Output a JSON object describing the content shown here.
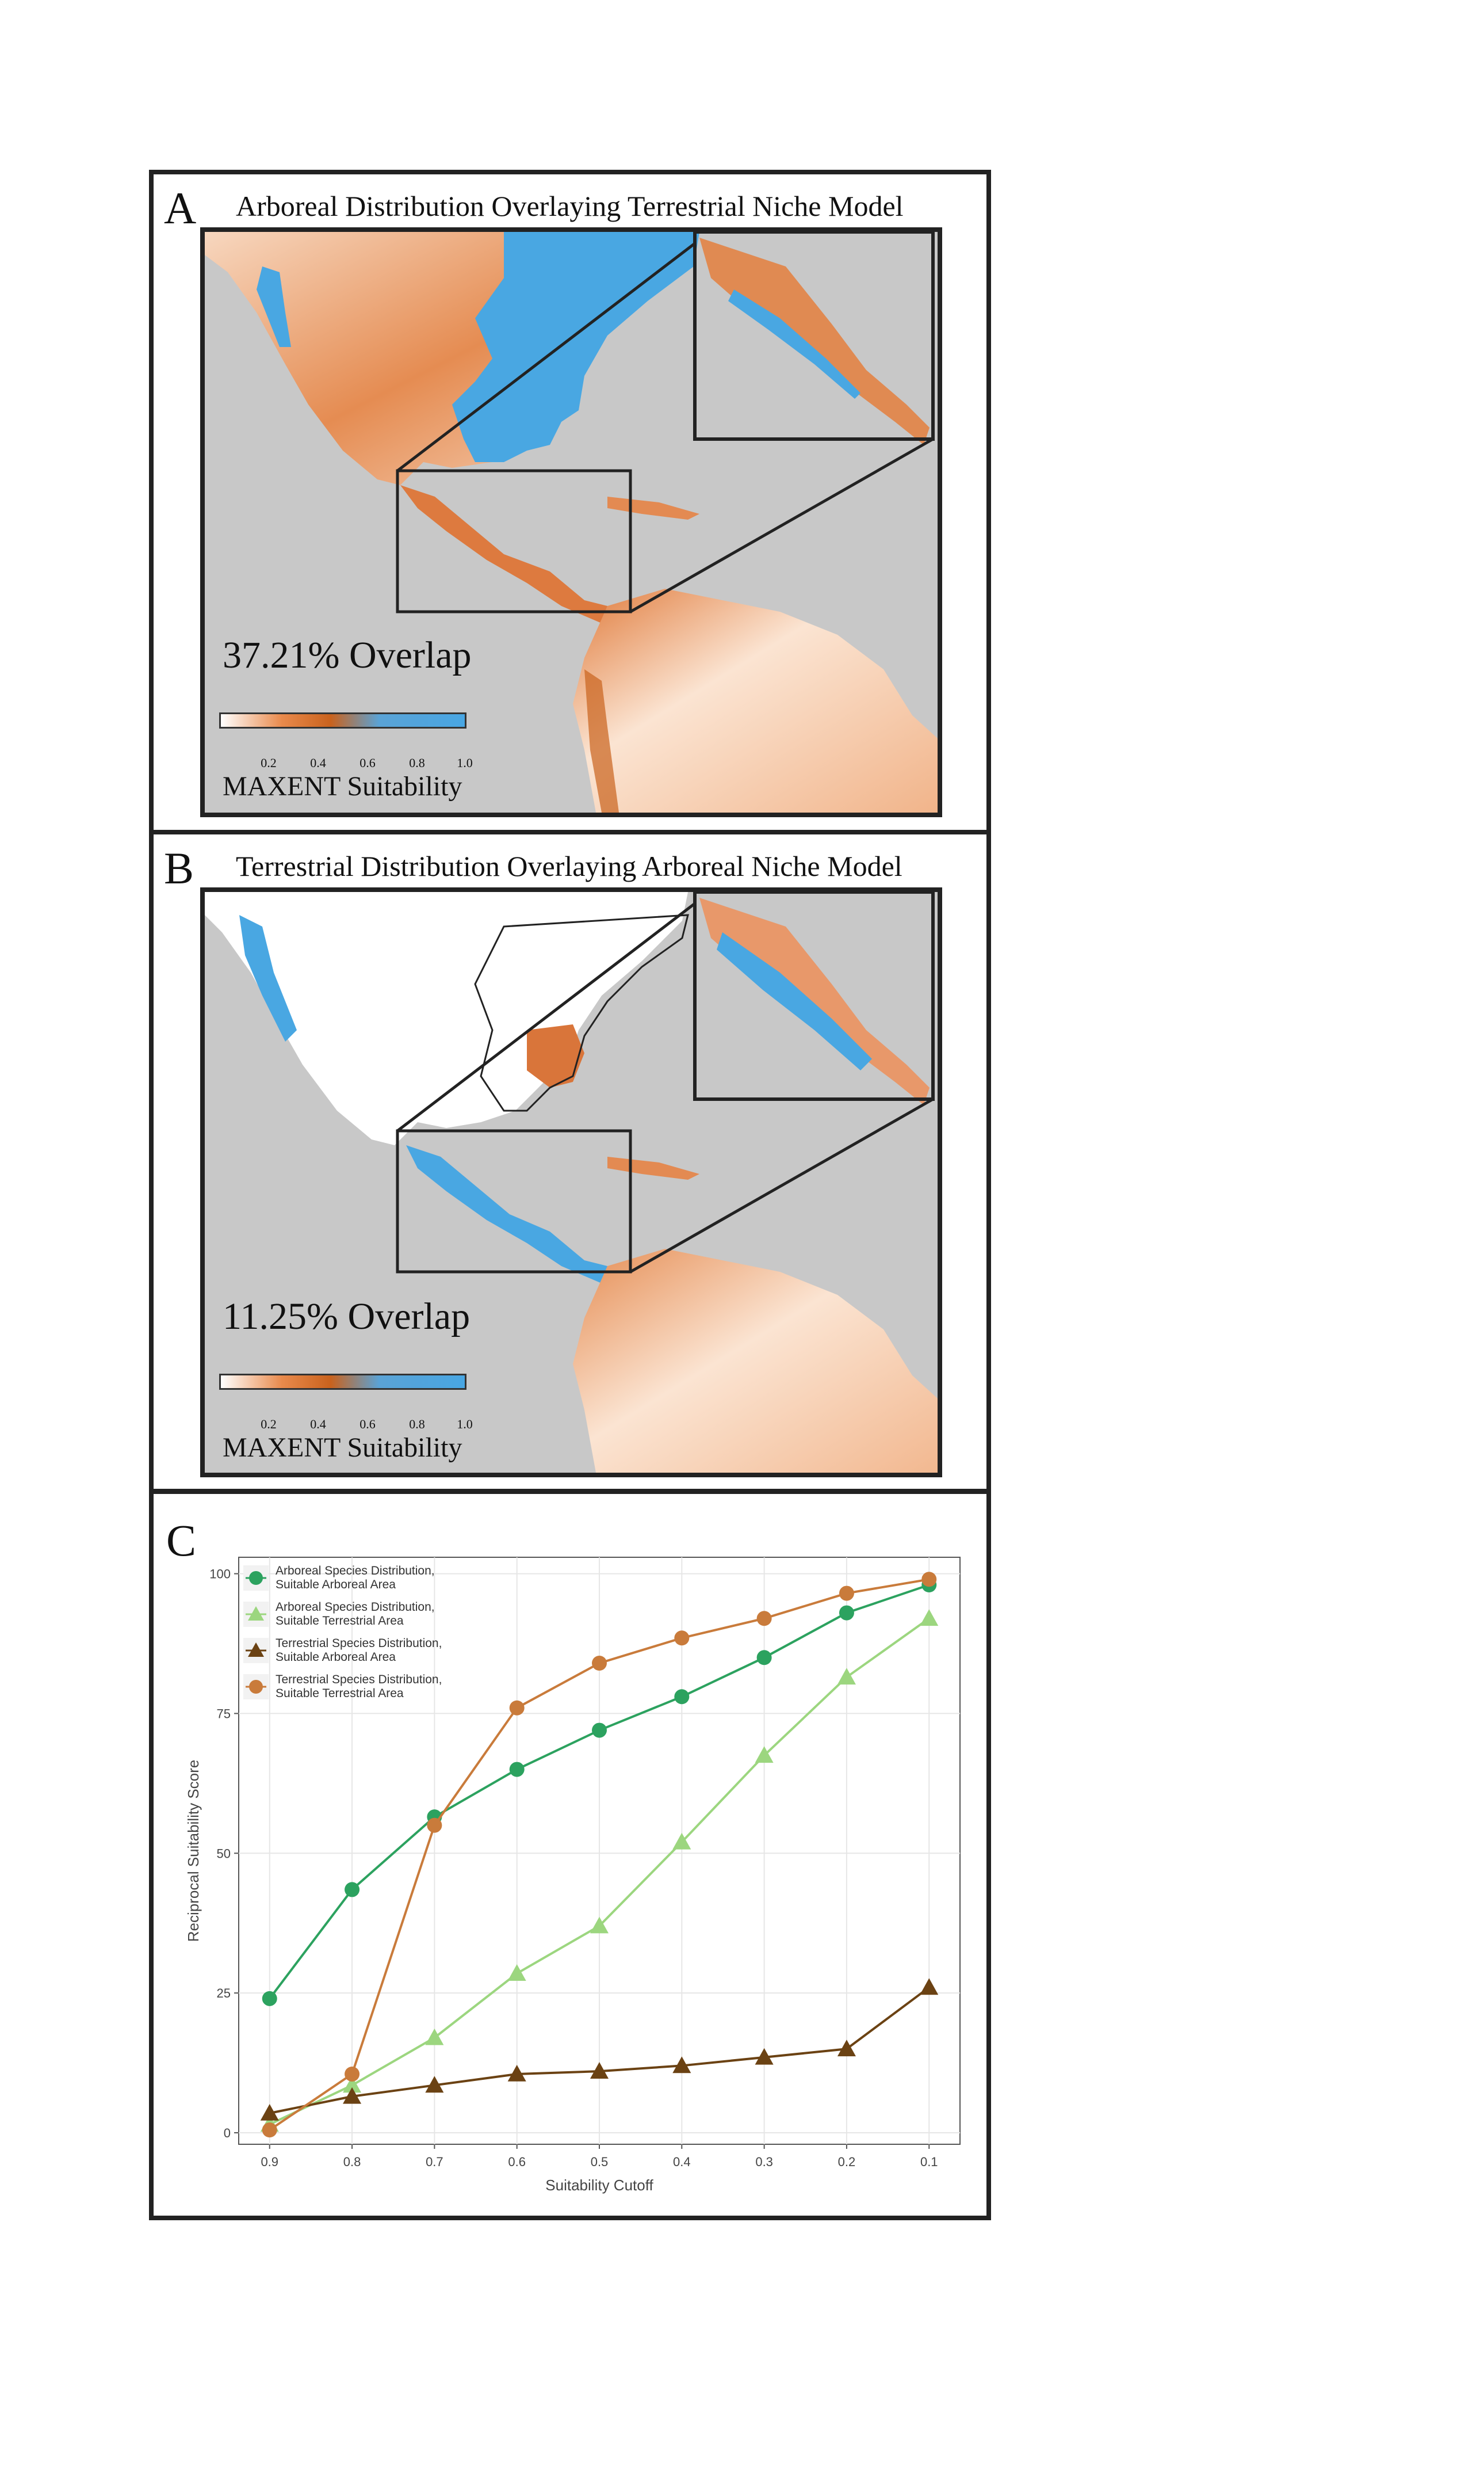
{
  "panels": {
    "A": {
      "letter": "A",
      "title": "Arboreal Distribution Overlaying Terrestrial Niche Model",
      "overlap": "37.21% Overlap"
    },
    "B": {
      "letter": "B",
      "title": "Terrestrial Distribution Overlaying Arboreal Niche Model",
      "overlap": "11.25% Overlap"
    },
    "C": {
      "letter": "C"
    }
  },
  "colorbar": {
    "ticks": [
      "0.2",
      "0.4",
      "0.6",
      "0.8",
      "1.0"
    ],
    "title": "MAXENT Suitability",
    "colors": [
      "#ffffff",
      "#e98a4c",
      "#c9621d",
      "#5aa3d6",
      "#48a6e3"
    ]
  },
  "map_colors": {
    "ocean": "#c8c8c8",
    "low": "#fbe6d6",
    "mid": "#e07a3a",
    "high": "#b9561a",
    "distribution": "#49a7e2"
  },
  "chart_data": {
    "type": "line",
    "xlabel": "Suitability Cutoff",
    "ylabel": "Reciprocal Suitability Score",
    "x": [
      0.9,
      0.8,
      0.7,
      0.6,
      0.5,
      0.4,
      0.3,
      0.2,
      0.1
    ],
    "x_tick_labels": [
      "0.9",
      "0.8",
      "0.7",
      "0.6",
      "0.5",
      "0.4",
      "0.3",
      "0.2",
      "0.1"
    ],
    "x_reversed": true,
    "ylim": [
      0,
      100
    ],
    "y_ticks": [
      0,
      25,
      50,
      75,
      100
    ],
    "grid": true,
    "legend_position": "top-left",
    "series": [
      {
        "name": "Arboreal Species Distribution, Suitable Arboreal Area",
        "name_lines": [
          "Arboreal Species Distribution,",
          "Suitable Arboreal Area"
        ],
        "marker": "circle",
        "color": "#2ca25f",
        "values": [
          24,
          43.5,
          56.5,
          65,
          72,
          78,
          85,
          93,
          98
        ]
      },
      {
        "name": "Arboreal Species Distribution, Suitable Terrestrial Area",
        "name_lines": [
          "Arboreal Species Distribution,",
          "Suitable Terrestrial Area"
        ],
        "marker": "triangle",
        "color": "#9cd67f",
        "values": [
          1.5,
          8.5,
          17,
          28.5,
          37,
          52,
          67.5,
          81.5,
          92
        ]
      },
      {
        "name": "Terrestrial Species Distribution, Suitable Arboreal Area",
        "name_lines": [
          "Terrestrial Species Distribution,",
          "Suitable Arboreal Area"
        ],
        "marker": "triangle",
        "color": "#6b4213",
        "values": [
          3.5,
          6.5,
          8.5,
          10.5,
          11,
          12,
          13.5,
          15,
          26
        ]
      },
      {
        "name": "Terrestrial Species Distribution, Suitable Terrestrial Area",
        "name_lines": [
          "Terrestrial Species Distribution,",
          "Suitable Terrestrial Area"
        ],
        "marker": "circle",
        "color": "#c97b3b",
        "values": [
          0.5,
          10.5,
          55,
          76,
          84,
          88.5,
          92,
          96.5,
          99
        ]
      }
    ]
  }
}
